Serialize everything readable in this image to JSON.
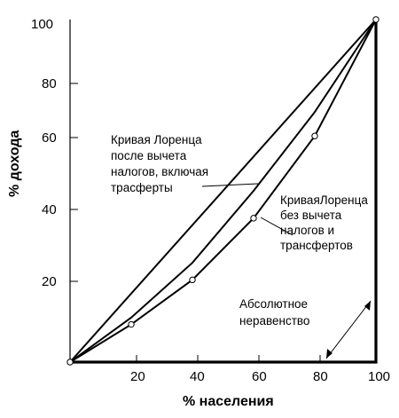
{
  "chart_data": {
    "type": "line",
    "xlabel": "% населения",
    "ylabel": "% дохода",
    "xlim": [
      0,
      100
    ],
    "ylim": [
      0,
      100
    ],
    "x_ticks": [
      "20",
      "40",
      "60",
      "80",
      "100"
    ],
    "y_ticks": [
      "20",
      "40",
      "60",
      "80",
      "100"
    ],
    "series": [
      {
        "id": "equality",
        "points": [
          [
            0,
            0
          ],
          [
            100,
            100
          ]
        ]
      },
      {
        "id": "after",
        "points": [
          [
            0,
            0
          ],
          [
            20,
            13
          ],
          [
            40,
            29
          ],
          [
            60,
            50
          ],
          [
            80,
            73
          ],
          [
            100,
            100
          ]
        ]
      },
      {
        "id": "before",
        "points": [
          [
            0,
            0
          ],
          [
            20,
            11
          ],
          [
            40,
            24
          ],
          [
            60,
            42
          ],
          [
            80,
            66
          ],
          [
            100,
            100
          ]
        ],
        "markers": [
          [
            0,
            0
          ],
          [
            20,
            11
          ],
          [
            40,
            24
          ],
          [
            60,
            42
          ],
          [
            80,
            66
          ],
          [
            100,
            100
          ]
        ]
      },
      {
        "id": "absolute",
        "points": [
          [
            0,
            0
          ],
          [
            100,
            0
          ],
          [
            100,
            100
          ]
        ]
      }
    ],
    "annotations": {
      "after": [
        "Кривая Лоренца",
        "после вычета",
        "налогов, включая",
        "трасферты"
      ],
      "before": [
        "КриваяЛоренца",
        "без вычета",
        "налогов и",
        "трансфертов"
      ],
      "absolute": [
        "Абсолютное",
        "неравенство"
      ]
    }
  }
}
